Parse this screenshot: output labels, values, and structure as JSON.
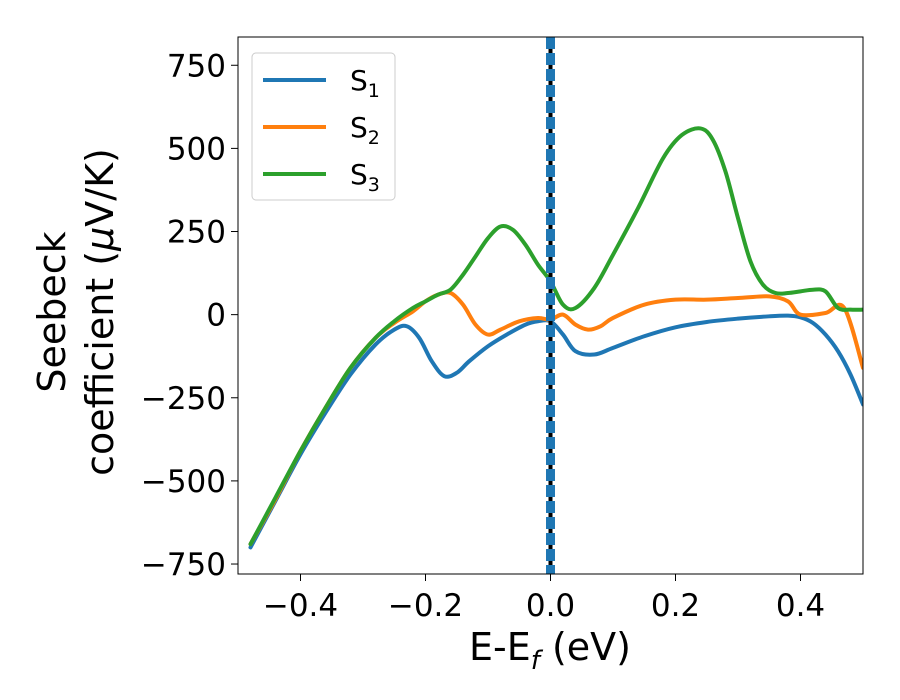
{
  "chart_data": {
    "type": "line",
    "xlabel_main": "E-E",
    "xlabel_sub": "f",
    "xlabel_tail": " (eV)",
    "ylabel_line1": "Seebeck",
    "ylabel_line2_pre": "coefficient  (",
    "ylabel_mu": "μ",
    "ylabel_line2_post": "V/K)",
    "xlim": [
      -0.5,
      0.5
    ],
    "ylim": [
      -780,
      835
    ],
    "xticks": [
      -0.4,
      -0.2,
      0.0,
      0.2,
      0.4
    ],
    "xtick_labels": [
      "−0.4",
      "−0.2",
      "0.0",
      "0.2",
      "0.4"
    ],
    "yticks": [
      750,
      500,
      250,
      0,
      -250,
      -500,
      -750
    ],
    "ytick_labels": [
      "750",
      "500",
      "250",
      "0",
      "−250",
      "−500",
      "−750"
    ],
    "grid": false,
    "legend_position": "top-left",
    "vline": {
      "x": 0.0,
      "color": "#1f77b4",
      "style": "dashed-over-black"
    },
    "series": [
      {
        "name": "S",
        "sub": "1",
        "color": "#1f77b4",
        "x": [
          -0.48,
          -0.44,
          -0.4,
          -0.36,
          -0.32,
          -0.28,
          -0.25,
          -0.23,
          -0.21,
          -0.19,
          -0.17,
          -0.15,
          -0.13,
          -0.1,
          -0.07,
          -0.04,
          -0.02,
          0.0,
          0.02,
          0.04,
          0.07,
          0.1,
          0.15,
          0.2,
          0.25,
          0.3,
          0.35,
          0.38,
          0.4,
          0.42,
          0.44,
          0.46,
          0.48,
          0.5
        ],
        "values": [
          -700,
          -560,
          -420,
          -295,
          -180,
          -90,
          -45,
          -35,
          -70,
          -140,
          -185,
          -175,
          -140,
          -95,
          -60,
          -30,
          -20,
          -20,
          -60,
          -110,
          -120,
          -100,
          -65,
          -38,
          -22,
          -12,
          -5,
          -3,
          -8,
          -25,
          -60,
          -110,
          -180,
          -270
        ]
      },
      {
        "name": "S",
        "sub": "2",
        "color": "#ff7f0e",
        "x": [
          -0.48,
          -0.44,
          -0.4,
          -0.36,
          -0.32,
          -0.28,
          -0.25,
          -0.22,
          -0.2,
          -0.18,
          -0.16,
          -0.14,
          -0.12,
          -0.1,
          -0.08,
          -0.05,
          -0.02,
          0.0,
          0.02,
          0.04,
          0.06,
          0.08,
          0.1,
          0.15,
          0.2,
          0.25,
          0.3,
          0.35,
          0.38,
          0.4,
          0.44,
          0.47,
          0.5
        ],
        "values": [
          -690,
          -555,
          -410,
          -280,
          -160,
          -70,
          -25,
          10,
          40,
          60,
          65,
          30,
          -30,
          -60,
          -45,
          -20,
          -10,
          -15,
          0,
          -30,
          -45,
          -35,
          -10,
          30,
          45,
          45,
          50,
          55,
          40,
          0,
          5,
          20,
          -160
        ]
      },
      {
        "name": "S",
        "sub": "3",
        "color": "#2ca02c",
        "x": [
          -0.48,
          -0.44,
          -0.4,
          -0.36,
          -0.32,
          -0.28,
          -0.25,
          -0.22,
          -0.2,
          -0.18,
          -0.16,
          -0.14,
          -0.12,
          -0.1,
          -0.08,
          -0.06,
          -0.04,
          -0.02,
          0.0,
          0.02,
          0.04,
          0.07,
          0.1,
          0.14,
          0.18,
          0.21,
          0.24,
          0.26,
          0.28,
          0.3,
          0.32,
          0.34,
          0.36,
          0.38,
          0.4,
          0.42,
          0.44,
          0.46,
          0.48,
          0.5
        ],
        "values": [
          -690,
          -550,
          -410,
          -280,
          -160,
          -70,
          -20,
          20,
          40,
          60,
          75,
          120,
          175,
          230,
          265,
          255,
          210,
          150,
          100,
          30,
          20,
          80,
          180,
          320,
          470,
          540,
          560,
          525,
          430,
          290,
          160,
          90,
          65,
          65,
          70,
          75,
          70,
          20,
          15,
          15
        ]
      }
    ]
  }
}
